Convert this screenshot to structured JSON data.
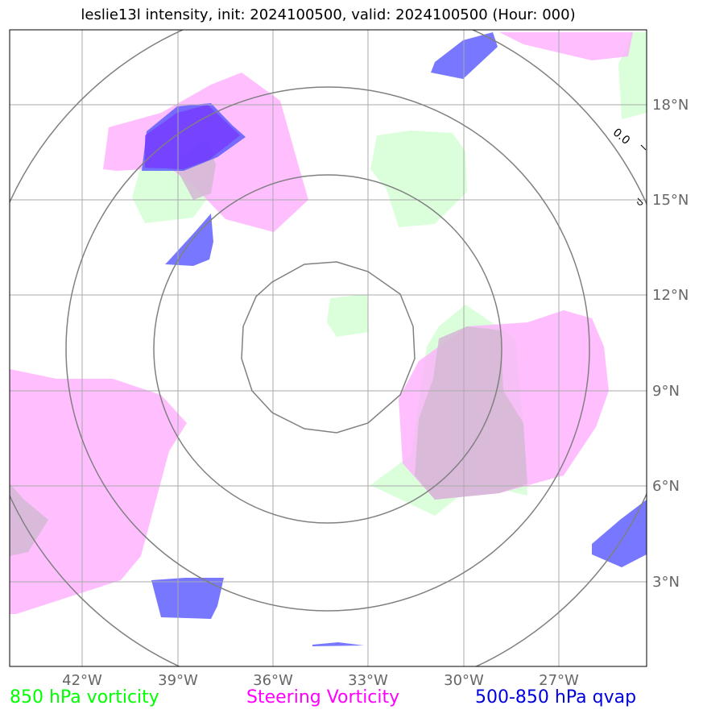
{
  "title": "leslie13l intensity, init: 2024100500, valid: 2024100500 (Hour: 000)",
  "lat_labels": [
    "18°N",
    "15°N",
    "12°N",
    "9°N",
    "6°N",
    "3°N"
  ],
  "lon_labels": [
    "42°W",
    "39°W",
    "36°W",
    "33°W",
    "30°W",
    "27°W"
  ],
  "legend": [
    {
      "label": "850 hPa vorticity",
      "color": "#00ff00"
    },
    {
      "label": "Steering Vorticity",
      "color": "#ff00ff"
    },
    {
      "label": "500-850 hPa qvap",
      "color": "#0000dd"
    }
  ],
  "contour_label": "0.0",
  "colors": {
    "vorticity_850": "#ccffcc",
    "steering": "#ffaaff",
    "qvap": "#5555ff",
    "grid": "#aaaaaa",
    "range_rings": "#808080"
  }
}
